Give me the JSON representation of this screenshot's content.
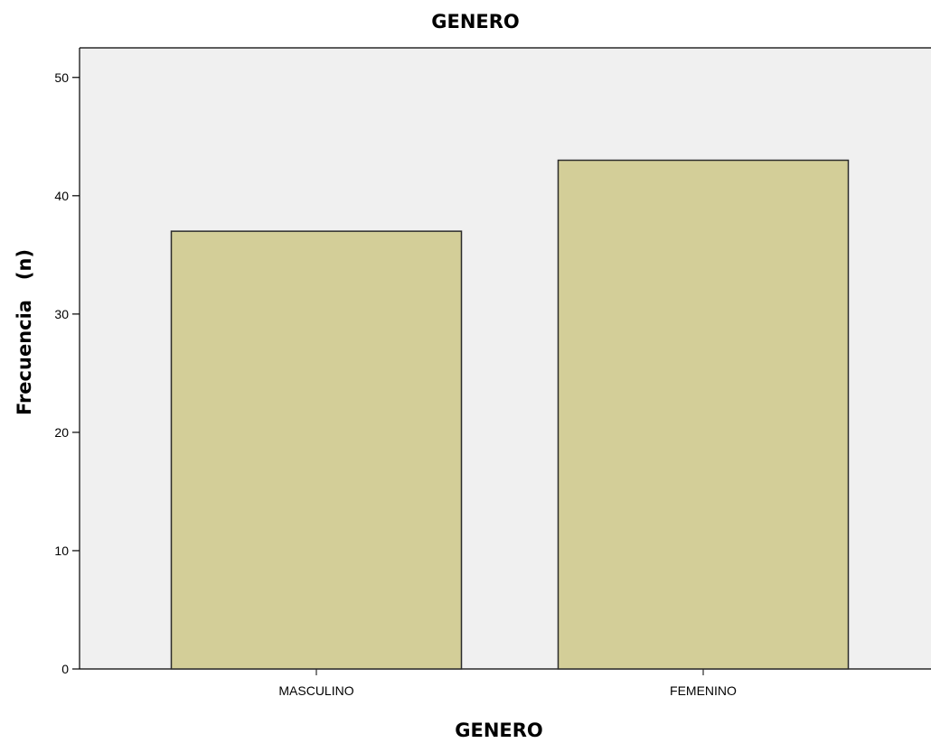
{
  "chart_data": {
    "type": "bar",
    "title": "GENERO",
    "xlabel": "GENERO",
    "ylabel": "Frecuencia   (n)",
    "categories": [
      "MASCULINO",
      "FEMENINO"
    ],
    "values": [
      37,
      43
    ],
    "ylim": [
      0,
      52.5
    ],
    "yticks": [
      0,
      10,
      20,
      30,
      40,
      50
    ],
    "grid": false,
    "legend": "none"
  },
  "colors": {
    "plot_background": "#f0f0f0",
    "bar_fill": "#d3ce98",
    "bar_stroke": "#2b2b2b",
    "axis": "#000000"
  }
}
